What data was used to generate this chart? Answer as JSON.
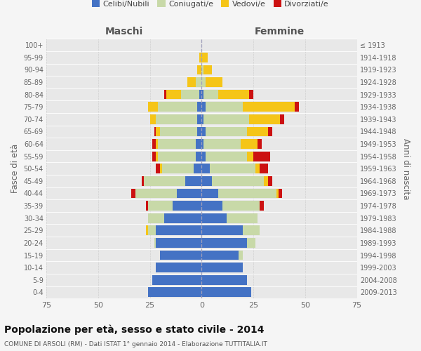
{
  "age_groups": [
    "0-4",
    "5-9",
    "10-14",
    "15-19",
    "20-24",
    "25-29",
    "30-34",
    "35-39",
    "40-44",
    "45-49",
    "50-54",
    "55-59",
    "60-64",
    "65-69",
    "70-74",
    "75-79",
    "80-84",
    "85-89",
    "90-94",
    "95-99",
    "100+"
  ],
  "birth_years": [
    "2009-2013",
    "2004-2008",
    "1999-2003",
    "1994-1998",
    "1989-1993",
    "1984-1988",
    "1979-1983",
    "1974-1978",
    "1969-1973",
    "1964-1968",
    "1959-1963",
    "1954-1958",
    "1949-1953",
    "1944-1948",
    "1939-1943",
    "1934-1938",
    "1929-1933",
    "1924-1928",
    "1919-1923",
    "1914-1918",
    "≤ 1913"
  ],
  "maschi": {
    "celibi": [
      26,
      24,
      22,
      20,
      22,
      22,
      18,
      14,
      12,
      8,
      4,
      3,
      3,
      2,
      2,
      2,
      1,
      0,
      0,
      0,
      0
    ],
    "coniugati": [
      0,
      0,
      0,
      0,
      1,
      4,
      8,
      12,
      20,
      20,
      15,
      18,
      18,
      18,
      20,
      19,
      9,
      3,
      0,
      0,
      0
    ],
    "vedovi": [
      0,
      0,
      0,
      0,
      0,
      1,
      0,
      0,
      0,
      0,
      1,
      1,
      1,
      2,
      3,
      5,
      7,
      4,
      2,
      1,
      0
    ],
    "divorziati": [
      0,
      0,
      0,
      0,
      0,
      0,
      0,
      1,
      2,
      1,
      2,
      2,
      2,
      1,
      0,
      0,
      1,
      0,
      0,
      0,
      0
    ]
  },
  "femmine": {
    "nubili": [
      24,
      22,
      20,
      18,
      22,
      20,
      12,
      10,
      8,
      5,
      4,
      2,
      1,
      2,
      1,
      2,
      1,
      0,
      0,
      0,
      0
    ],
    "coniugate": [
      0,
      0,
      0,
      2,
      4,
      8,
      15,
      18,
      28,
      25,
      22,
      20,
      18,
      20,
      22,
      18,
      7,
      2,
      1,
      0,
      0
    ],
    "vedove": [
      0,
      0,
      0,
      0,
      0,
      0,
      0,
      0,
      1,
      2,
      2,
      3,
      8,
      10,
      15,
      25,
      15,
      8,
      4,
      3,
      0
    ],
    "divorziate": [
      0,
      0,
      0,
      0,
      0,
      0,
      0,
      2,
      2,
      2,
      4,
      8,
      2,
      2,
      2,
      2,
      2,
      0,
      0,
      0,
      0
    ]
  },
  "colors": {
    "celibi": "#4472C4",
    "coniugati": "#c8d9a8",
    "vedovi": "#f5c518",
    "divorziati": "#cc1111"
  },
  "xlim": 75,
  "title": "Popolazione per età, sesso e stato civile - 2014",
  "subtitle": "COMUNE DI ARSOLI (RM) - Dati ISTAT 1° gennaio 2014 - Elaborazione TUTTITALIA.IT",
  "ylabel_left": "Fasce di età",
  "ylabel_right": "Anni di nascita",
  "xlabel_left": "Maschi",
  "xlabel_right": "Femmine",
  "bg_color": "#f5f5f5",
  "plot_bg": "#e8e8e8"
}
